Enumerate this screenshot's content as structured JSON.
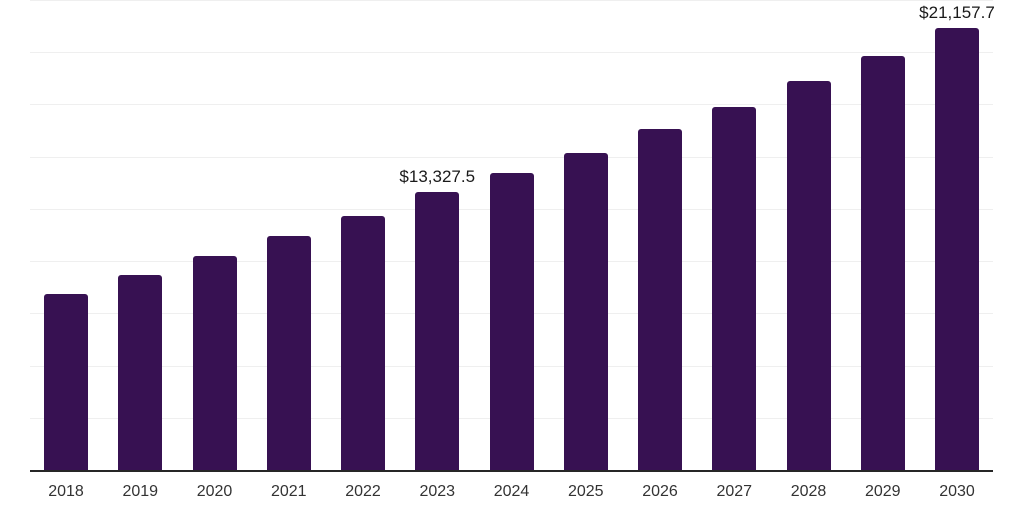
{
  "chart_data": {
    "type": "bar",
    "title": "",
    "xlabel": "",
    "ylabel": "",
    "categories": [
      "2018",
      "2019",
      "2020",
      "2021",
      "2022",
      "2023",
      "2024",
      "2025",
      "2026",
      "2027",
      "2028",
      "2029",
      "2030"
    ],
    "values": [
      8410,
      9345,
      10260,
      11180,
      12160,
      13327.5,
      14210,
      15170,
      16330,
      17390,
      18600,
      19805,
      21157.7
    ],
    "data_labels": [
      {
        "category": "2023",
        "text": "$13,327.5"
      },
      {
        "category": "2030",
        "text": "$21,157.7"
      }
    ],
    "ylim": [
      0,
      22500
    ],
    "gridline_interval": 2500,
    "grid": "horizontal-only",
    "y_tick_labels_visible": false,
    "legend_position": "none",
    "bar_color": "#371152",
    "axis_line_color": "#262626",
    "gridline_color": "#efefef",
    "tick_label_color": "#333333",
    "data_label_color": "#1a1a1a",
    "background_color": "#ffffff"
  }
}
